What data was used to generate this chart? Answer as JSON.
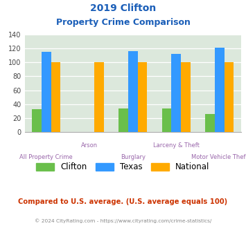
{
  "title_line1": "2019 Clifton",
  "title_line2": "Property Crime Comparison",
  "categories": [
    "All Property Crime",
    "Arson",
    "Burglary",
    "Larceny & Theft",
    "Motor Vehicle Theft"
  ],
  "clifton": [
    33,
    0,
    34,
    34,
    26
  ],
  "texas": [
    115,
    0,
    116,
    112,
    121
  ],
  "national": [
    100,
    100,
    100,
    100,
    100
  ],
  "clifton_color": "#6abf4b",
  "texas_color": "#3399ff",
  "national_color": "#ffaa00",
  "background_color": "#dce8dc",
  "ylim": [
    0,
    140
  ],
  "yticks": [
    0,
    20,
    40,
    60,
    80,
    100,
    120,
    140
  ],
  "legend_labels": [
    "Clifton",
    "Texas",
    "National"
  ],
  "note_text": "Compared to U.S. average. (U.S. average equals 100)",
  "footer_text": "© 2024 CityRating.com - https://www.cityrating.com/crime-statistics/",
  "title_color": "#1a5eb8",
  "xlabel_color": "#9966aa",
  "note_color": "#cc3300",
  "footer_color": "#888888",
  "bar_width": 0.22
}
